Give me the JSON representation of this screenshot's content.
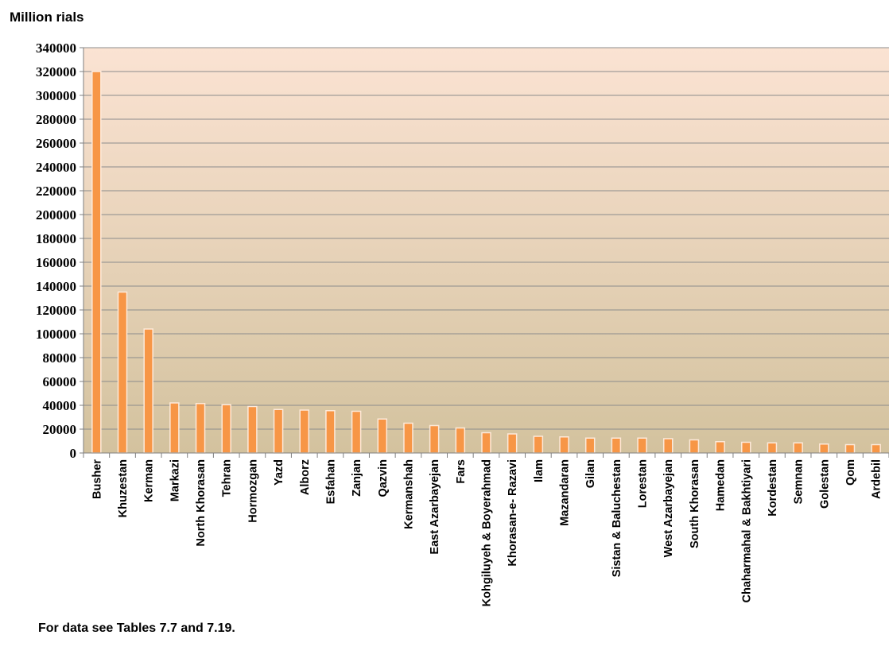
{
  "chart_data": {
    "type": "bar",
    "unit_label": "Million rials",
    "categories": [
      "Busher",
      "Khuzestan",
      "Kerman",
      "Markazi",
      "North Khorasan",
      "Tehran",
      "Hormozgan",
      "Yazd",
      "Alborz",
      "Esfahan",
      "Zanjan",
      "Qazvin",
      "Kermanshah",
      "East Azarbayejan",
      "Fars",
      "Kohgiluyeh & Boyerahmad",
      "Khorasan-e- Razavi",
      "Ilam",
      "Mazandaran",
      "Gilan",
      "Sistan & Baluchestan",
      "Lorestan",
      "West Azarbayejan",
      "South Khorasan",
      "Hamedan",
      "Chaharmahal & Bakhtiyari",
      "Kordestan",
      "Semnan",
      "Golestan",
      "Qom",
      "Ardebil"
    ],
    "values": [
      320000,
      135000,
      104000,
      42000,
      41500,
      40500,
      39000,
      36500,
      36000,
      35500,
      35000,
      28500,
      25000,
      23000,
      21000,
      17000,
      16000,
      14000,
      13500,
      12500,
      12500,
      12500,
      12000,
      11000,
      9500,
      9000,
      8500,
      8500,
      7500,
      7000,
      7000
    ],
    "ylim": [
      0,
      340000
    ],
    "yticks": [
      "0",
      "20000",
      "40000",
      "60000",
      "80000",
      "100000",
      "120000",
      "140000",
      "160000",
      "180000",
      "200000",
      "220000",
      "240000",
      "260000",
      "280000",
      "300000",
      "320000",
      "340000"
    ],
    "grid": true,
    "bar_color": "#f79646",
    "bar_edge_color": "#fde9d9",
    "background_top": "#fbe3d3",
    "background_bottom": "#d3c29e"
  },
  "footnote": "For data see Tables 7.7  and 7.19."
}
